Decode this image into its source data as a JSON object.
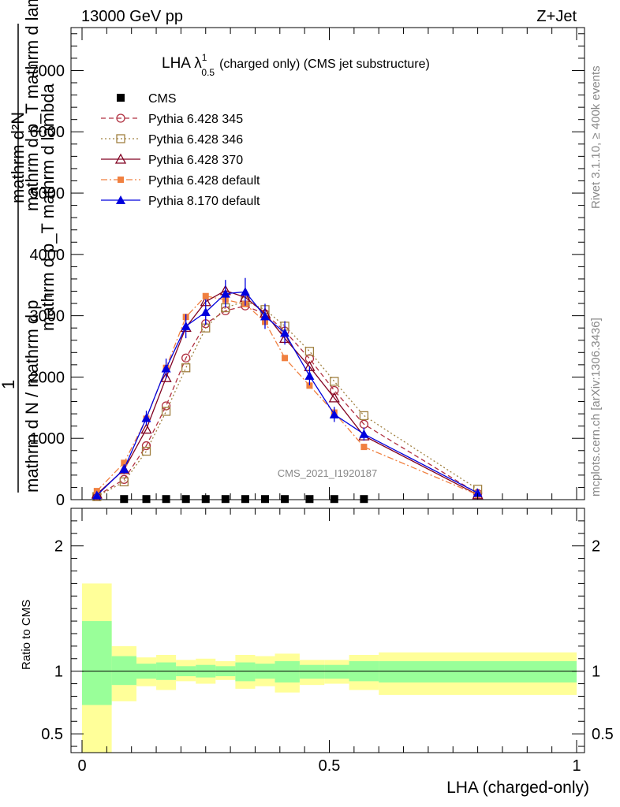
{
  "header": {
    "energy": "13000 GeV pp",
    "process": "Z+Jet",
    "title_main": "LHA λ",
    "title_sup": "1",
    "title_sub": "0.5",
    "title_rest": "(charged only) (CMS jet substructure)",
    "rivet_label": "Rivet 3.1.10, ≥ 400k events",
    "mcplots_label": "mcplots.cern.ch [arXiv:1306.3436]",
    "analysis_label": "CMS_2021_I1920187"
  },
  "chart_data": [
    {
      "type": "line",
      "panel": "main",
      "ylabel_lines": [
        "mathrm d²N",
        "mathrm d p_T mathrm d lambda",
        "1",
        "mathrm d N / mathrm d p_T"
      ],
      "ylabel_texts": {
        "top1": "mathrm d²N",
        "top2": "mathrm d p_T mathrm d lambda",
        "top3": "mathrm d p_T mathrm d lambda",
        "one": "1",
        "bot1": "mathrm d N / mathrm d p",
        "bot2": "T"
      },
      "xlim": [
        0,
        1
      ],
      "ylim": [
        0,
        7700
      ],
      "yticks": [
        0,
        1000,
        2000,
        3000,
        4000,
        5000,
        6000,
        7000
      ],
      "ytick_labels": [
        "0",
        "1000",
        "2000",
        "3000",
        "4000",
        "5000",
        "6000",
        "7000"
      ],
      "x": [
        0.03,
        0.085,
        0.13,
        0.17,
        0.21,
        0.25,
        0.29,
        0.33,
        0.37,
        0.41,
        0.46,
        0.51,
        0.57,
        0.8
      ],
      "cms_values": [
        0,
        10,
        10,
        10,
        10,
        10,
        10,
        10,
        10,
        10,
        10,
        10,
        10,
        0
      ],
      "cms_x": [
        0.085,
        0.13,
        0.17,
        0.21,
        0.25,
        0.29,
        0.33,
        0.37,
        0.41,
        0.46,
        0.51,
        0.57
      ],
      "series": [
        {
          "name": "CMS",
          "color": "#000000",
          "marker": "square",
          "style": "none",
          "x": [
            0.085,
            0.13,
            0.17,
            0.21,
            0.25,
            0.29,
            0.33,
            0.37,
            0.41,
            0.46,
            0.51,
            0.57
          ],
          "values": [
            10,
            10,
            10,
            10,
            10,
            10,
            10,
            10,
            10,
            10,
            10,
            10
          ]
        },
        {
          "name": "Pythia 6.428 345",
          "color": "#b03040",
          "marker": "circle-open",
          "style": "dashed",
          "x": [
            0.03,
            0.085,
            0.13,
            0.17,
            0.21,
            0.25,
            0.29,
            0.33,
            0.37,
            0.41,
            0.46,
            0.51,
            0.57,
            0.8
          ],
          "values": [
            60,
            330,
            880,
            1530,
            2310,
            2870,
            3080,
            3160,
            3030,
            2750,
            2300,
            1780,
            1230,
            100
          ]
        },
        {
          "name": "Pythia 6.428 346",
          "color": "#a08040",
          "marker": "square-open",
          "style": "dotted",
          "x": [
            0.03,
            0.085,
            0.13,
            0.17,
            0.21,
            0.25,
            0.29,
            0.33,
            0.37,
            0.41,
            0.46,
            0.51,
            0.57,
            0.8
          ],
          "values": [
            50,
            290,
            790,
            1440,
            2150,
            2800,
            3130,
            3240,
            3100,
            2830,
            2420,
            1930,
            1370,
            170
          ]
        },
        {
          "name": "Pythia 6.428 370",
          "color": "#800020",
          "marker": "triangle-open",
          "style": "solid",
          "x": [
            0.03,
            0.085,
            0.13,
            0.17,
            0.21,
            0.25,
            0.29,
            0.33,
            0.37,
            0.41,
            0.46,
            0.51,
            0.57,
            0.8
          ],
          "values": [
            90,
            490,
            1150,
            1990,
            2810,
            3230,
            3410,
            3300,
            3040,
            2630,
            2170,
            1660,
            1040,
            80
          ]
        },
        {
          "name": "Pythia 6.428 default",
          "color": "#f08040",
          "marker": "square-filled",
          "style": "dashdot",
          "x": [
            0.03,
            0.085,
            0.13,
            0.17,
            0.21,
            0.25,
            0.29,
            0.33,
            0.37,
            0.41,
            0.46,
            0.51,
            0.57,
            0.8
          ],
          "values": [
            140,
            600,
            1320,
            2150,
            2980,
            3320,
            3260,
            3190,
            2900,
            2310,
            1860,
            1420,
            860,
            80
          ]
        },
        {
          "name": "Pythia 8.170 default",
          "color": "#0000dd",
          "marker": "triangle-filled",
          "style": "solid",
          "x": [
            0.03,
            0.085,
            0.13,
            0.17,
            0.21,
            0.25,
            0.29,
            0.33,
            0.37,
            0.41,
            0.46,
            0.51,
            0.57,
            0.8
          ],
          "values": [
            70,
            500,
            1330,
            2140,
            2830,
            3060,
            3360,
            3390,
            2990,
            2720,
            2020,
            1390,
            1070,
            110
          ]
        }
      ]
    },
    {
      "type": "area",
      "panel": "ratio",
      "ylabel": "Ratio to CMS",
      "xlabel": "LHA (charged-only)",
      "xlim": [
        0,
        1
      ],
      "ylim": [
        0.35,
        2.3
      ],
      "yticks": [
        0.5,
        1,
        2
      ],
      "ytick_labels": [
        "0.5",
        "1",
        "2"
      ],
      "xticks": [
        0,
        0.5,
        1
      ],
      "xtick_labels": [
        "0",
        "0.5",
        "1"
      ],
      "bin_edges": [
        0.0,
        0.06,
        0.11,
        0.15,
        0.19,
        0.23,
        0.27,
        0.31,
        0.35,
        0.39,
        0.44,
        0.49,
        0.54,
        0.6,
        1.0
      ],
      "band_total_low": [
        0.35,
        0.35,
        0.76,
        0.88,
        0.85,
        0.92,
        0.9,
        0.93,
        0.86,
        0.88,
        0.83,
        0.89,
        0.9,
        0.85,
        0.81
      ],
      "band_total_high": [
        1.7,
        1.7,
        1.2,
        1.11,
        1.13,
        1.09,
        1.1,
        1.08,
        1.13,
        1.12,
        1.14,
        1.09,
        1.09,
        1.13,
        1.15
      ],
      "band_stat_low": [
        0.73,
        0.73,
        0.89,
        0.94,
        0.93,
        0.96,
        0.95,
        0.96,
        0.92,
        0.94,
        0.91,
        0.94,
        0.94,
        0.92,
        0.91
      ],
      "band_stat_high": [
        1.4,
        1.4,
        1.12,
        1.06,
        1.07,
        1.04,
        1.05,
        1.04,
        1.07,
        1.06,
        1.08,
        1.05,
        1.05,
        1.08,
        1.08
      ],
      "reference": 1
    }
  ]
}
